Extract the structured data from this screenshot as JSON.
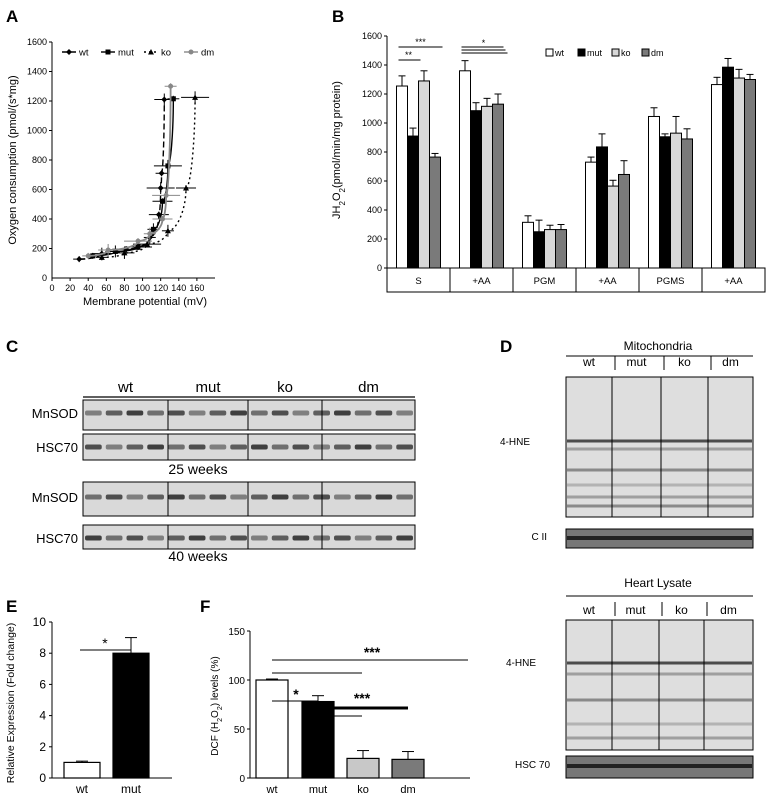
{
  "panel_labels": {
    "A": "A",
    "B": "B",
    "C": "C",
    "D": "D",
    "E": "E",
    "F": "F"
  },
  "chart_data": [
    {
      "id": "A",
      "type": "line",
      "xlabel": "Membrane potential (mV)",
      "ylabel": "Oxygen consumption (pmol/(s*mg)",
      "xlim": [
        0,
        180
      ],
      "ylim": [
        0,
        1600
      ],
      "xticks": [
        0,
        20,
        40,
        60,
        80,
        100,
        120,
        140,
        160
      ],
      "yticks": [
        200,
        400,
        600,
        800,
        1000,
        1200,
        1400,
        1600
      ],
      "legend": "top-left",
      "series": [
        {
          "name": "wt",
          "color": "#000000",
          "dash": "6,3",
          "marker": "diamond",
          "points": [
            [
              30,
              128
            ],
            [
              55,
              165
            ],
            [
              82,
              195
            ],
            [
              108,
              275
            ],
            [
              118,
              430
            ],
            [
              120,
              610
            ],
            [
              121,
              710
            ],
            [
              124,
              1210
            ]
          ]
        },
        {
          "name": "mut",
          "color": "#000000",
          "dash": "",
          "marker": "square",
          "points": [
            [
              45,
              150
            ],
            [
              70,
              180
            ],
            [
              95,
              210
            ],
            [
              112,
              330
            ],
            [
              122,
              520
            ],
            [
              128,
              760
            ],
            [
              134,
              1215
            ]
          ]
        },
        {
          "name": "ko",
          "color": "#000000",
          "dash": "2,3",
          "marker": "triangle",
          "points": [
            [
              55,
              140
            ],
            [
              80,
              170
            ],
            [
              105,
              230
            ],
            [
              128,
              320
            ],
            [
              148,
              610
            ],
            [
              158,
              1225
            ]
          ]
        },
        {
          "name": "dm",
          "color": "#888888",
          "dash": "",
          "marker": "circle",
          "points": [
            [
              40,
              150
            ],
            [
              62,
              190
            ],
            [
              95,
              250
            ],
            [
              108,
              300
            ],
            [
              122,
              400
            ],
            [
              126,
              560
            ],
            [
              131,
              1300
            ]
          ]
        }
      ]
    },
    {
      "id": "B",
      "type": "bar",
      "ylabel": "JH2O2(pmol/min/mg protein)",
      "ylim": [
        0,
        1600
      ],
      "yticks": [
        0,
        200,
        400,
        600,
        800,
        1000,
        1200,
        1400,
        1600
      ],
      "categories": [
        "S",
        "+AA",
        "PGM",
        "+AA",
        "PGMS",
        "+AA"
      ],
      "legend": "top-right",
      "series": [
        {
          "name": "wt",
          "color": "#ffffff",
          "values": [
            1255,
            1360,
            315,
            730,
            1045,
            1265
          ]
        },
        {
          "name": "mut",
          "color": "#000000",
          "values": [
            910,
            1085,
            250,
            835,
            905,
            1385
          ]
        },
        {
          "name": "ko",
          "color": "#d8d8d8",
          "values": [
            1290,
            1115,
            265,
            565,
            930,
            1310
          ]
        },
        {
          "name": "dm",
          "color": "#7a7a7a",
          "values": [
            765,
            1130,
            265,
            645,
            890,
            1300
          ]
        }
      ],
      "errors": [
        [
          70,
          70,
          45,
          35,
          60,
          50
        ],
        [
          55,
          55,
          80,
          90,
          20,
          60
        ],
        [
          70,
          55,
          30,
          40,
          115,
          60
        ],
        [
          25,
          70,
          35,
          95,
          70,
          35
        ]
      ],
      "significance": [
        "***",
        "**",
        "*"
      ]
    },
    {
      "id": "E",
      "type": "bar",
      "ylabel": "Relative Expression (Fold change)",
      "ylim": [
        0,
        10
      ],
      "yticks": [
        0,
        2,
        4,
        6,
        8,
        10
      ],
      "categories": [
        "wt",
        "mut"
      ],
      "values": [
        1.0,
        8.0
      ],
      "errors": [
        0.08,
        1.0
      ],
      "colors": [
        "#ffffff",
        "#000000"
      ],
      "significance": [
        "*"
      ]
    },
    {
      "id": "F",
      "type": "bar",
      "ylabel": "DCF (H2O2) levels (%)",
      "ylim": [
        0,
        150
      ],
      "yticks": [
        0,
        50,
        100,
        150
      ],
      "categories": [
        "wt",
        "mut",
        "ko",
        "dm"
      ],
      "values": [
        100,
        78,
        20,
        19
      ],
      "errors": [
        1,
        6,
        8,
        8
      ],
      "colors": [
        "#ffffff",
        "#000000",
        "#c8c8c8",
        "#7a7a7a"
      ],
      "significance": [
        "***",
        "*",
        "***"
      ]
    }
  ],
  "blot_C": {
    "groups": [
      "wt",
      "mut",
      "ko",
      "dm"
    ],
    "rows": [
      "MnSOD",
      "HSC70",
      "MnSOD",
      "HSC70"
    ],
    "timepoints": [
      "25 weeks",
      "40 weeks"
    ]
  },
  "blot_D": {
    "top_title": "Mitochondria",
    "bottom_title": "Heart Lysate",
    "groups": [
      "wt",
      "mut",
      "ko",
      "dm"
    ],
    "top_labels": [
      "4-HNE",
      "C II"
    ],
    "bottom_labels": [
      "4-HNE",
      "HSC 70"
    ]
  }
}
